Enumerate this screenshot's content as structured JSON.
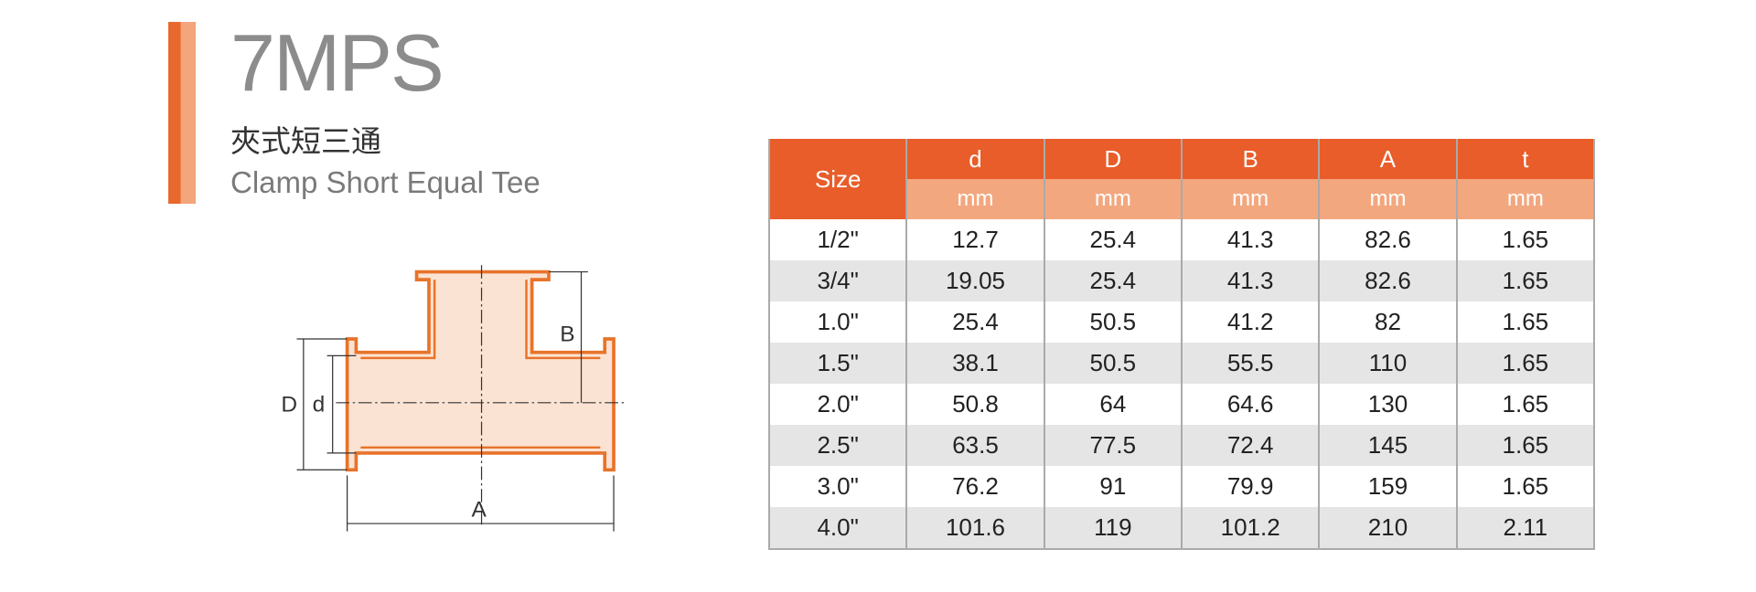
{
  "header": {
    "title": "7MPS",
    "subtitle_cn": "夾式短三通",
    "subtitle_en": "Clamp Short Equal Tee"
  },
  "diagram": {
    "labels": {
      "D": "D",
      "d": "d",
      "B": "B",
      "A": "A"
    }
  },
  "table": {
    "size_header": "Size",
    "columns": [
      {
        "name": "d",
        "unit": "mm"
      },
      {
        "name": "D",
        "unit": "mm"
      },
      {
        "name": "B",
        "unit": "mm"
      },
      {
        "name": "A",
        "unit": "mm"
      },
      {
        "name": "t",
        "unit": "mm"
      }
    ],
    "rows": [
      [
        "1/2\"",
        "12.7",
        "25.4",
        "41.3",
        "82.6",
        "1.65"
      ],
      [
        "3/4\"",
        "19.05",
        "25.4",
        "41.3",
        "82.6",
        "1.65"
      ],
      [
        "1.0\"",
        "25.4",
        "50.5",
        "41.2",
        "82",
        "1.65"
      ],
      [
        "1.5\"",
        "38.1",
        "50.5",
        "55.5",
        "110",
        "1.65"
      ],
      [
        "2.0\"",
        "50.8",
        "64",
        "64.6",
        "130",
        "1.65"
      ],
      [
        "2.5\"",
        "63.5",
        "77.5",
        "72.4",
        "145",
        "1.65"
      ],
      [
        "3.0\"",
        "76.2",
        "91",
        "79.9",
        "159",
        "1.65"
      ],
      [
        "4.0\"",
        "101.6",
        "119",
        "101.2",
        "210",
        "2.11"
      ]
    ]
  }
}
